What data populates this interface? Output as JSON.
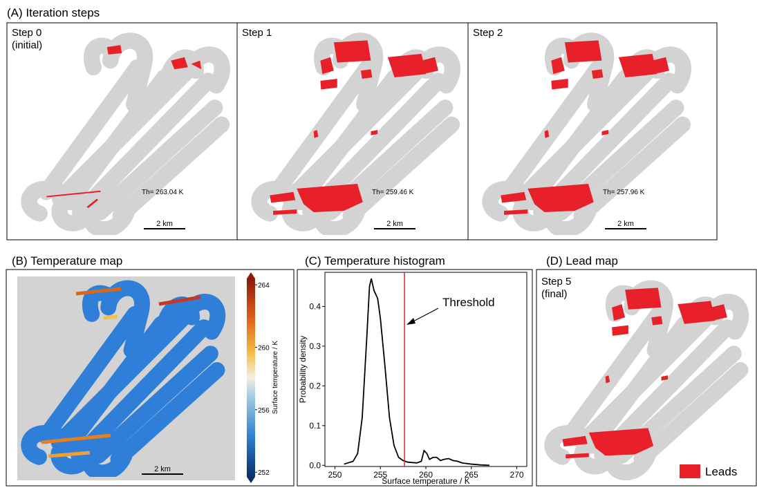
{
  "panel_a": {
    "title": "(A) Iteration steps",
    "steps": [
      {
        "label": "Step 0",
        "sublabel": "(initial)",
        "threshold": "Th= 263.04 K",
        "scale": "2 km"
      },
      {
        "label": "Step 1",
        "threshold": "Th= 259.46 K",
        "scale": "2 km"
      },
      {
        "label": "Step 2",
        "threshold": "Th= 257.96 K",
        "scale": "2 km"
      }
    ]
  },
  "panel_b": {
    "title": "(B) Temperature map",
    "colorbar_label": "Surface temperature / K",
    "clim": [
      251.7,
      264.4
    ],
    "colorbar_ticks": [
      252,
      256,
      260,
      264
    ],
    "scale": "2 km"
  },
  "chart_data": {
    "type": "line",
    "title": "(C) Temperature histogram",
    "x": [
      251,
      252,
      252.5,
      253,
      253.5,
      253.8,
      254,
      254.3,
      254.7,
      255,
      255.5,
      256,
      256.5,
      257,
      257.5,
      258,
      259,
      259.5,
      259.8,
      260.1,
      260.4,
      260.8,
      261.2,
      261.6,
      262,
      262.5,
      263,
      263.5,
      264,
      265,
      266,
      267
    ],
    "values": [
      0.003,
      0.01,
      0.03,
      0.12,
      0.32,
      0.45,
      0.47,
      0.44,
      0.42,
      0.37,
      0.25,
      0.12,
      0.05,
      0.02,
      0.012,
      0.008,
      0.006,
      0.01,
      0.037,
      0.03,
      0.015,
      0.02,
      0.02,
      0.012,
      0.015,
      0.017,
      0.012,
      0.01,
      0.006,
      0.003,
      0.001,
      0
    ],
    "color": "#000000",
    "xlabel": "Surface temperature / K",
    "ylabel": "Probability density",
    "xlim": [
      248.9,
      271.1
    ],
    "ylim": [
      -0.003,
      0.486
    ],
    "xticks": [
      250,
      255,
      260,
      265,
      270
    ],
    "yticks": [
      {
        "value": 0,
        "label": "0.0"
      },
      0.1,
      0.2,
      0.3,
      0.4
    ],
    "threshold": 257.65,
    "threshold_color": "#d62728",
    "annotation": "Threshold"
  },
  "panel_d": {
    "title": "(D) Lead map",
    "label": "Step 5",
    "sublabel": "(final)",
    "legend": "Leads",
    "legend_color": "#e8202a"
  }
}
